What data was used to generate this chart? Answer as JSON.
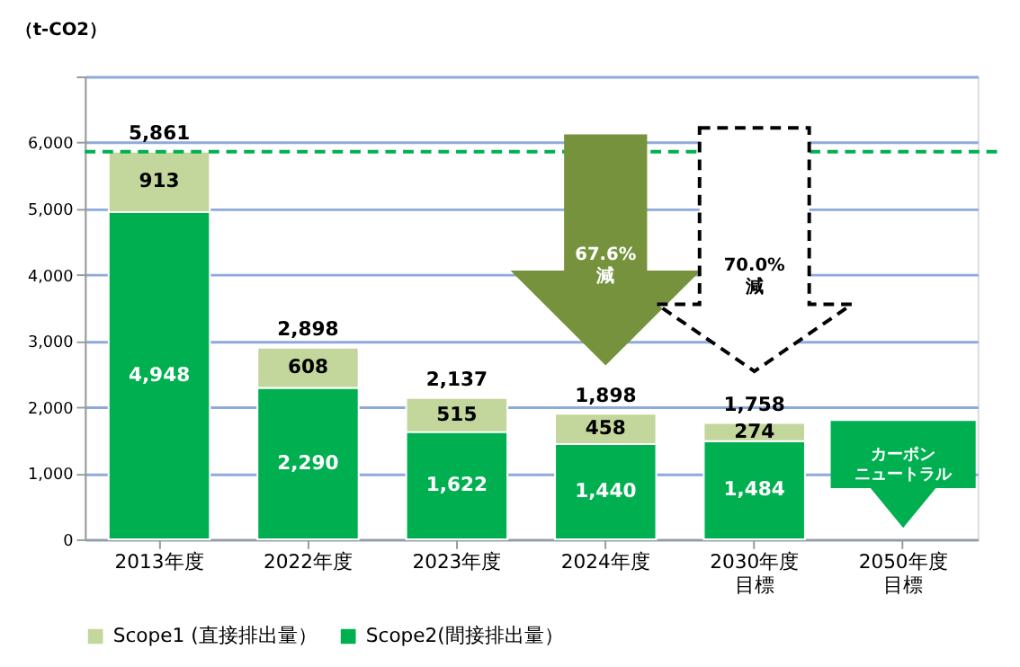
{
  "chart_data": {
    "type": "bar",
    "stacked": true,
    "ylabel": "（t-CO2）",
    "categories": [
      "2013年度",
      "2022年度",
      "2023年度",
      "2024年度",
      "2030年度目標",
      "2050年度目標"
    ],
    "series": [
      {
        "name": "Scope2(間接排出量）",
        "color": "#00b050",
        "values": [
          4948,
          2290,
          1622,
          1440,
          1484,
          null
        ],
        "value_labels": [
          "4,948",
          "2,290",
          "1,622",
          "1,440",
          "1,484",
          null
        ]
      },
      {
        "name": "Scope1 (直接排出量）",
        "color": "#c3d69b",
        "values": [
          913,
          608,
          515,
          458,
          274,
          null
        ],
        "value_labels": [
          "913",
          "608",
          "515",
          "458",
          "274",
          null
        ]
      }
    ],
    "totals": [
      "5,861",
      "2,898",
      "2,137",
      "1,898",
      "1,758",
      null
    ],
    "ylim": [
      0,
      7000
    ],
    "yticks": [
      0,
      {
        "value": 1000,
        "label": "1,000"
      },
      {
        "value": 2000,
        "label": "2,000"
      },
      {
        "value": 3000,
        "label": "3,000"
      },
      {
        "value": 4000,
        "label": "4,000"
      },
      {
        "value": 5000,
        "label": "5,000"
      },
      {
        "value": 6000,
        "label": "6,000"
      },
      {
        "value": 7000,
        "label": null
      }
    ],
    "grid": "y",
    "legend": "bottom",
    "ref_lines": [
      {
        "axis": "y",
        "value": 5861,
        "color": "#00b050",
        "line_style": "dashed"
      }
    ],
    "annotations": [
      "67.6%\n減",
      "70.0%\n減",
      "カーボンニュートラル"
    ]
  }
}
